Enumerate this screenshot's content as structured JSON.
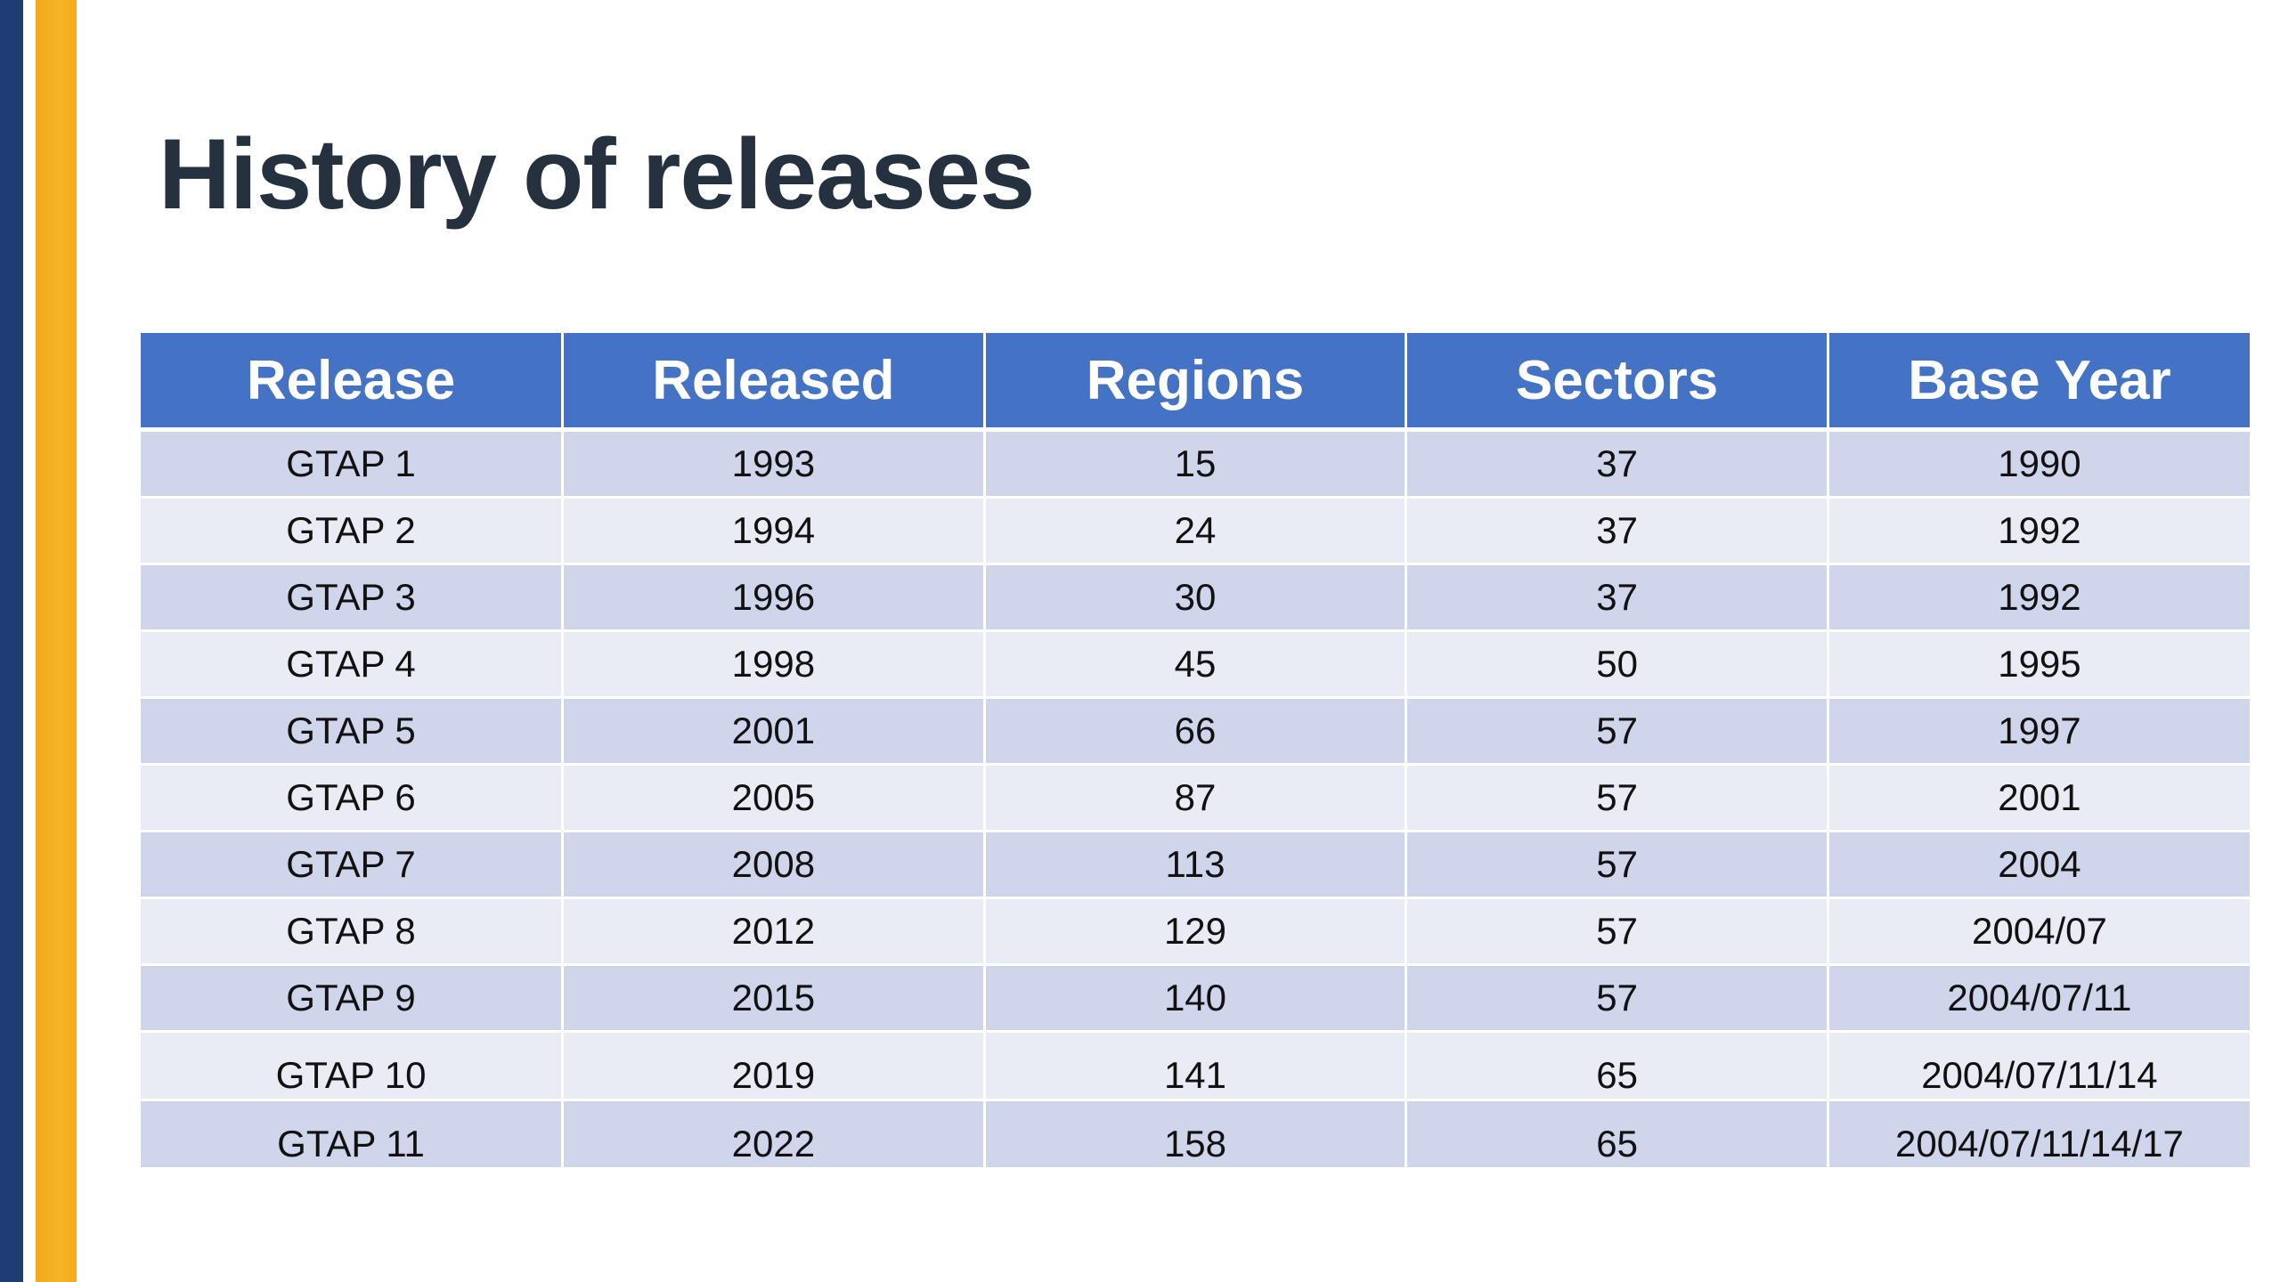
{
  "title": "History of releases",
  "table": {
    "headers": [
      "Release",
      "Released",
      "Regions",
      "Sectors",
      "Base Year"
    ],
    "rows": [
      [
        "GTAP 1",
        "1993",
        "15",
        "37",
        "1990"
      ],
      [
        "GTAP 2",
        "1994",
        "24",
        "37",
        "1992"
      ],
      [
        "GTAP 3",
        "1996",
        "30",
        "37",
        "1992"
      ],
      [
        "GTAP 4",
        "1998",
        "45",
        "50",
        "1995"
      ],
      [
        "GTAP 5",
        "2001",
        "66",
        "57",
        "1997"
      ],
      [
        "GTAP 6",
        "2005",
        "87",
        "57",
        "2001"
      ],
      [
        "GTAP 7",
        "2008",
        "113",
        "57",
        "2004"
      ],
      [
        "GTAP 8",
        "2012",
        "129",
        "57",
        "2004/07"
      ],
      [
        "GTAP 9",
        "2015",
        "140",
        "57",
        "2004/07/11"
      ],
      [
        "GTAP 10",
        "2019",
        "141",
        "65",
        "2004/07/11/14"
      ],
      [
        "GTAP 11",
        "2022",
        "158",
        "65",
        "2004/07/11/14/17"
      ]
    ]
  },
  "colors": {
    "header_background": "#4472c4",
    "row_band_dark": "#cfd5ea",
    "row_band_light": "#e9ebf5",
    "title_text": "#26313f",
    "accent_navy": "#1f3c73",
    "accent_gold": "#f7b524"
  }
}
